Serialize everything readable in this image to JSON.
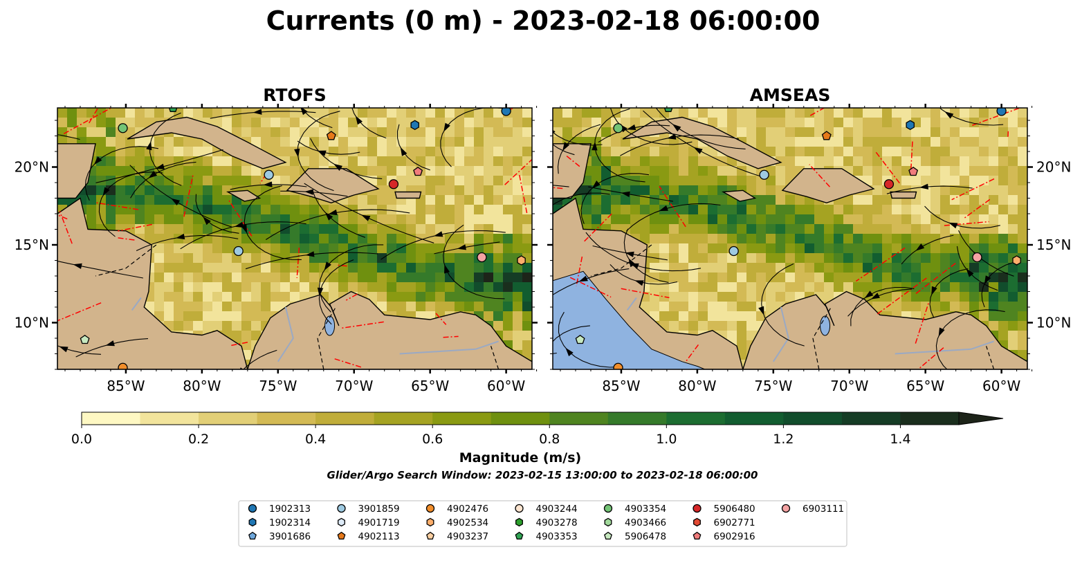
{
  "figure": {
    "title": "Currents (0 m) - 2023-02-18 06:00:00",
    "subtitle": "Glider/Argo Search Window: 2023-02-15 13:00:00 to 2023-02-18 06:00:00"
  },
  "chart_data": {
    "type": "heatmap",
    "panels": [
      {
        "title": "RTOFS",
        "lon_ticks": [
          "85°W",
          "80°W",
          "75°W",
          "70°W",
          "65°W",
          "60°W"
        ],
        "lat_ticks": [
          "20°N",
          "15°N",
          "10°N"
        ],
        "lat_axis_side": "left"
      },
      {
        "title": "AMSEAS",
        "lon_ticks": [
          "85°W",
          "80°W",
          "75°W",
          "70°W",
          "65°W",
          "60°W"
        ],
        "lat_ticks": [
          "20°N",
          "15°N",
          "10°N"
        ],
        "lat_axis_side": "right"
      }
    ],
    "extent": {
      "lon": [
        -89.5,
        -58.3
      ],
      "lat": [
        7.0,
        23.8
      ]
    },
    "lon_values": [
      -85,
      -80,
      -75,
      -70,
      -65,
      -60
    ],
    "lat_values": [
      20,
      15,
      10
    ],
    "colorbar": {
      "label": "Magnitude (m/s)",
      "min": 0.0,
      "max": 1.5,
      "step": 0.1,
      "extend": "max",
      "ticks": [
        "0.0",
        "0.2",
        "0.4",
        "0.6",
        "0.8",
        "1.0",
        "1.2",
        "1.4"
      ],
      "colors": [
        "#fef8c3",
        "#f2e49c",
        "#e2cf77",
        "#d3ba55",
        "#c0ad3a",
        "#a5a322",
        "#8a9a12",
        "#6f900f",
        "#4f8420",
        "#357a2a",
        "#1c6d31",
        "#125d30",
        "#114d2c",
        "#153c25",
        "#1a2e1d",
        "#1d2419"
      ]
    },
    "legend": {
      "items": [
        {
          "id": "1902313",
          "marker": "circle",
          "color": "#1f77b4"
        },
        {
          "id": "1902314",
          "marker": "hexagon",
          "color": "#1f77b4"
        },
        {
          "id": "3901686",
          "marker": "pentagon",
          "color": "#6fa8dc"
        },
        {
          "id": "3901859",
          "marker": "circle",
          "color": "#9ecae1"
        },
        {
          "id": "4901719",
          "marker": "hexagon",
          "color": "#deebf7"
        },
        {
          "id": "4902113",
          "marker": "pentagon",
          "color": "#e6791a"
        },
        {
          "id": "4902476",
          "marker": "circle",
          "color": "#f28e2b"
        },
        {
          "id": "4902534",
          "marker": "hexagon",
          "color": "#fdae6b"
        },
        {
          "id": "4903237",
          "marker": "pentagon",
          "color": "#fdd0a2"
        },
        {
          "id": "4903244",
          "marker": "circle",
          "color": "#fde5d0"
        },
        {
          "id": "4903278",
          "marker": "hexagon",
          "color": "#2ca02c"
        },
        {
          "id": "4903353",
          "marker": "pentagon",
          "color": "#31a354"
        },
        {
          "id": "4903354",
          "marker": "circle",
          "color": "#74c476"
        },
        {
          "id": "4903466",
          "marker": "hexagon",
          "color": "#a1d99b"
        },
        {
          "id": "5906478",
          "marker": "pentagon",
          "color": "#c7e9c0"
        },
        {
          "id": "5906480",
          "marker": "circle",
          "color": "#d62728"
        },
        {
          "id": "6902771",
          "marker": "hexagon",
          "color": "#e34a33"
        },
        {
          "id": "6902916",
          "marker": "pentagon",
          "color": "#f07c7c"
        },
        {
          "id": "6903111",
          "marker": "circle",
          "color": "#f4a3a3"
        }
      ]
    },
    "floats": [
      {
        "id": "1902313",
        "lon": -60.0,
        "lat": 23.6
      },
      {
        "id": "1902314",
        "lon": -66.0,
        "lat": 22.7
      },
      {
        "id": "3901859",
        "lon": -75.6,
        "lat": 19.5
      },
      {
        "id": "3901859",
        "lon": -77.6,
        "lat": 14.6
      },
      {
        "id": "4902113",
        "lon": -71.5,
        "lat": 22.0
      },
      {
        "id": "4902476",
        "lon": -85.2,
        "lat": 7.1
      },
      {
        "id": "4902534",
        "lon": -59.0,
        "lat": 14.0
      },
      {
        "id": "4903354",
        "lon": -85.2,
        "lat": 22.5
      },
      {
        "id": "4903353",
        "lon": -81.9,
        "lat": 23.8
      },
      {
        "id": "5906478",
        "lon": -87.7,
        "lat": 8.9
      },
      {
        "id": "5906480",
        "lon": -67.4,
        "lat": 18.9
      },
      {
        "id": "6902916",
        "lon": -65.8,
        "lat": 19.7
      },
      {
        "id": "6903111",
        "lon": -61.6,
        "lat": 14.2
      }
    ],
    "colors": {
      "land": "#d2b48c",
      "boundary": "#ff0000",
      "pacific": "#8fb3e0",
      "rivers": "#9aa9c4"
    }
  }
}
